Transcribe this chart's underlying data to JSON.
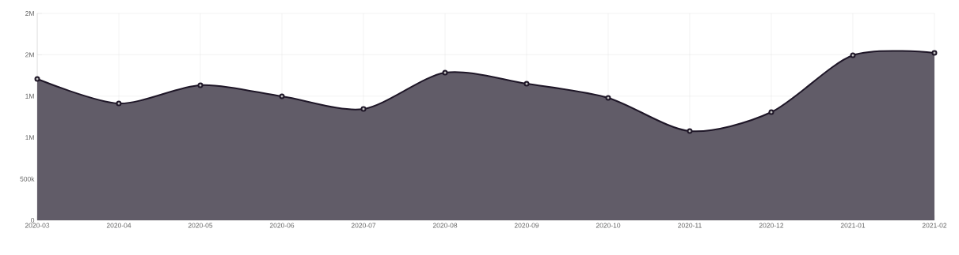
{
  "chart_data": {
    "type": "area",
    "categories": [
      "2020-03",
      "2020-04",
      "2020-05",
      "2020-06",
      "2020-07",
      "2020-08",
      "2020-09",
      "2020-10",
      "2020-11",
      "2020-12",
      "2021-01",
      "2021-02"
    ],
    "series": [
      {
        "color": "#1e1627",
        "values": [
          1708000,
          1412000,
          1632000,
          1498000,
          1345000,
          1784000,
          1650000,
          1479000,
          1078000,
          1307000,
          1994000,
          2023000
        ]
      }
    ],
    "ylim": [
      0,
      2500000
    ],
    "yticks": [
      {
        "value": 0,
        "label": "0"
      },
      {
        "value": 500000,
        "label": "500k"
      },
      {
        "value": 1000000,
        "label": "1M"
      },
      {
        "value": 1500000,
        "label": "1M"
      },
      {
        "value": 2000000,
        "label": "2M"
      },
      {
        "value": 2500000,
        "label": "2M"
      }
    ],
    "grid": true,
    "marker": "circle",
    "line_style": "solid"
  }
}
